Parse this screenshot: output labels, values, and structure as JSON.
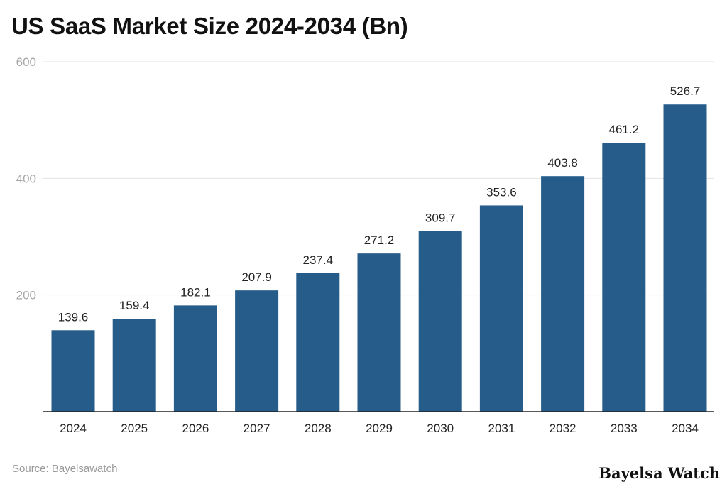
{
  "chart_data": {
    "type": "bar",
    "title": "US SaaS Market Size 2024-2034 (Bn)",
    "xlabel": "",
    "ylabel": "",
    "categories": [
      "2024",
      "2025",
      "2026",
      "2027",
      "2028",
      "2029",
      "2030",
      "2031",
      "2032",
      "2033",
      "2034"
    ],
    "values": [
      139.6,
      159.4,
      182.1,
      207.9,
      237.4,
      271.2,
      309.7,
      353.6,
      403.8,
      461.2,
      526.7
    ],
    "data_labels": [
      "139.6",
      "159.4",
      "182.1",
      "207.9",
      "237.4",
      "271.2",
      "309.7",
      "353.6",
      "403.8",
      "461.2",
      "526.7"
    ],
    "ylim": [
      0,
      600
    ],
    "yticks": [
      "200",
      "400",
      "600"
    ],
    "grid": true,
    "bar_color": "#255c8a",
    "source": "Source: Bayelsawatch",
    "watermark": "Bayelsa Watch"
  }
}
